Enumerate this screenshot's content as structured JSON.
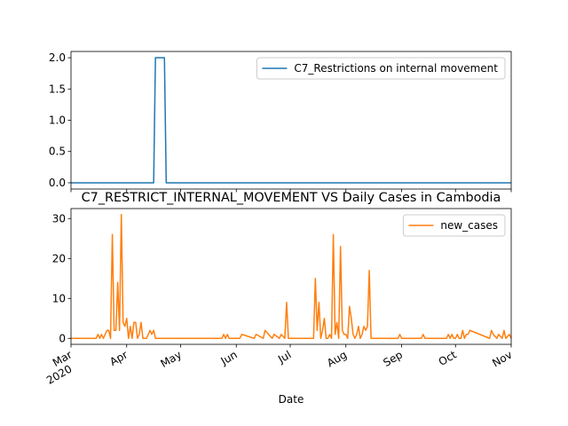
{
  "chart_data": [
    {
      "type": "line",
      "title": "",
      "xlabel": "",
      "ylabel": "",
      "xlim": [
        "2020-03-01",
        "2020-11-01"
      ],
      "ylim": [
        -0.1,
        2.1
      ],
      "yticks": [
        "0.0",
        "0.5",
        "1.0",
        "1.5",
        "2.0"
      ],
      "grid": false,
      "legend_position": "upper right",
      "series": [
        {
          "name": "C7_Restrictions on internal movement",
          "color": "#1f77b4",
          "x": [
            "2020-03-01",
            "2020-04-16",
            "2020-04-17",
            "2020-04-22",
            "2020-04-23",
            "2020-11-01"
          ],
          "values": [
            0,
            0,
            2,
            2,
            0,
            0
          ]
        }
      ]
    },
    {
      "type": "line",
      "title": "C7_RESTRICT_INTERNAL_MOVEMENT VS Daily Cases in Cambodia",
      "xlabel": "Date",
      "ylabel": "",
      "xlim": [
        "2020-03-01",
        "2020-11-01"
      ],
      "ylim": [
        -1.5,
        32.5
      ],
      "yticks": [
        "0",
        "10",
        "20",
        "30"
      ],
      "xticks": [
        {
          "date": "2020-03-01",
          "label": "Mar",
          "sublabel": "2020"
        },
        {
          "date": "2020-04-01",
          "label": "Apr"
        },
        {
          "date": "2020-05-01",
          "label": "May"
        },
        {
          "date": "2020-06-01",
          "label": "Jun"
        },
        {
          "date": "2020-07-01",
          "label": "Jul"
        },
        {
          "date": "2020-08-01",
          "label": "Aug"
        },
        {
          "date": "2020-09-01",
          "label": "Sep"
        },
        {
          "date": "2020-10-01",
          "label": "Oct"
        },
        {
          "date": "2020-11-01",
          "label": "Nov"
        }
      ],
      "grid": false,
      "legend_position": "upper right",
      "series": [
        {
          "name": "new_cases",
          "color": "#ff7f0e",
          "x": [
            "2020-03-01",
            "2020-03-15",
            "2020-03-16",
            "2020-03-17",
            "2020-03-18",
            "2020-03-19",
            "2020-03-20",
            "2020-03-21",
            "2020-03-22",
            "2020-03-23",
            "2020-03-24",
            "2020-03-25",
            "2020-03-26",
            "2020-03-27",
            "2020-03-28",
            "2020-03-29",
            "2020-03-30",
            "2020-03-31",
            "2020-04-01",
            "2020-04-02",
            "2020-04-03",
            "2020-04-04",
            "2020-04-05",
            "2020-04-06",
            "2020-04-07",
            "2020-04-08",
            "2020-04-09",
            "2020-04-10",
            "2020-04-11",
            "2020-04-12",
            "2020-04-13",
            "2020-04-14",
            "2020-04-15",
            "2020-04-16",
            "2020-04-17",
            "2020-05-24",
            "2020-05-25",
            "2020-05-26",
            "2020-05-27",
            "2020-05-28",
            "2020-06-03",
            "2020-06-04",
            "2020-06-11",
            "2020-06-12",
            "2020-06-16",
            "2020-06-17",
            "2020-06-21",
            "2020-06-22",
            "2020-06-25",
            "2020-06-26",
            "2020-06-28",
            "2020-06-29",
            "2020-06-30",
            "2020-07-14",
            "2020-07-15",
            "2020-07-16",
            "2020-07-17",
            "2020-07-18",
            "2020-07-19",
            "2020-07-20",
            "2020-07-21",
            "2020-07-22",
            "2020-07-23",
            "2020-07-24",
            "2020-07-25",
            "2020-07-26",
            "2020-07-27",
            "2020-07-28",
            "2020-07-29",
            "2020-07-30",
            "2020-07-31",
            "2020-08-01",
            "2020-08-02",
            "2020-08-03",
            "2020-08-04",
            "2020-08-05",
            "2020-08-06",
            "2020-08-07",
            "2020-08-08",
            "2020-08-09",
            "2020-08-10",
            "2020-08-11",
            "2020-08-12",
            "2020-08-13",
            "2020-08-14",
            "2020-08-15",
            "2020-08-30",
            "2020-08-31",
            "2020-09-01",
            "2020-09-12",
            "2020-09-13",
            "2020-09-14",
            "2020-09-26",
            "2020-09-27",
            "2020-09-28",
            "2020-09-29",
            "2020-09-30",
            "2020-10-01",
            "2020-10-02",
            "2020-10-03",
            "2020-10-04",
            "2020-10-05",
            "2020-10-06",
            "2020-10-07",
            "2020-10-08",
            "2020-10-09",
            "2020-10-20",
            "2020-10-21",
            "2020-10-22",
            "2020-10-24",
            "2020-10-25",
            "2020-10-27",
            "2020-10-28",
            "2020-10-29",
            "2020-10-31",
            "2020-11-01"
          ],
          "values": [
            0,
            0,
            1,
            0,
            1,
            0,
            1,
            2,
            2,
            0,
            26,
            2,
            2,
            14,
            2,
            31,
            4,
            3,
            5,
            0,
            3,
            0,
            4,
            4,
            0,
            1,
            4,
            0,
            0,
            0,
            1,
            2,
            1,
            2,
            0,
            0,
            1,
            0,
            1,
            0,
            0,
            1,
            0,
            1,
            0,
            2,
            0,
            1,
            0,
            1,
            0,
            9,
            0,
            0,
            15,
            2,
            9,
            0,
            2,
            5,
            0,
            0,
            1,
            0,
            26,
            1,
            4,
            0,
            23,
            2,
            1,
            1,
            0,
            8,
            5,
            1,
            0,
            1,
            3,
            0,
            1,
            3,
            2,
            3,
            17,
            0,
            0,
            1,
            0,
            0,
            1,
            0,
            0,
            1,
            0,
            1,
            0,
            0,
            1,
            0,
            0,
            2,
            0,
            1,
            1,
            2,
            0,
            2,
            1,
            0,
            1,
            0,
            2,
            0,
            1,
            0
          ]
        }
      ]
    }
  ]
}
